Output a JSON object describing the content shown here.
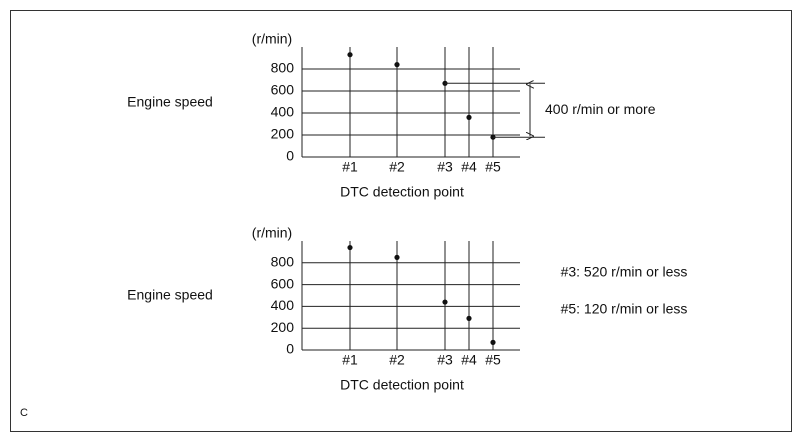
{
  "chart_data": [
    {
      "type": "scatter",
      "label": "Engine speed",
      "ylabel": "(r/min)",
      "xlabel": "DTC detection point",
      "categories": [
        "#1",
        "#2",
        "#3",
        "#4",
        "#5"
      ],
      "values": [
        930,
        840,
        670,
        360,
        180
      ],
      "color": "#111111",
      "ylim": [
        0,
        1000
      ],
      "yticks": [
        0,
        200,
        400,
        600,
        800
      ],
      "grid": true,
      "annotations": [
        "400 r/min or more"
      ]
    },
    {
      "type": "scatter",
      "label": "Engine speed",
      "ylabel": "(r/min)",
      "xlabel": "DTC detection point",
      "categories": [
        "#1",
        "#2",
        "#3",
        "#4",
        "#5"
      ],
      "values": [
        940,
        850,
        440,
        290,
        70
      ],
      "color": "#111111",
      "ylim": [
        0,
        1000
      ],
      "yticks": [
        0,
        200,
        400,
        600,
        800
      ],
      "grid": true,
      "annotations": [
        "#3: 520 r/min or less",
        "#5: 120 r/min or less"
      ]
    }
  ],
  "corner_label": "C"
}
